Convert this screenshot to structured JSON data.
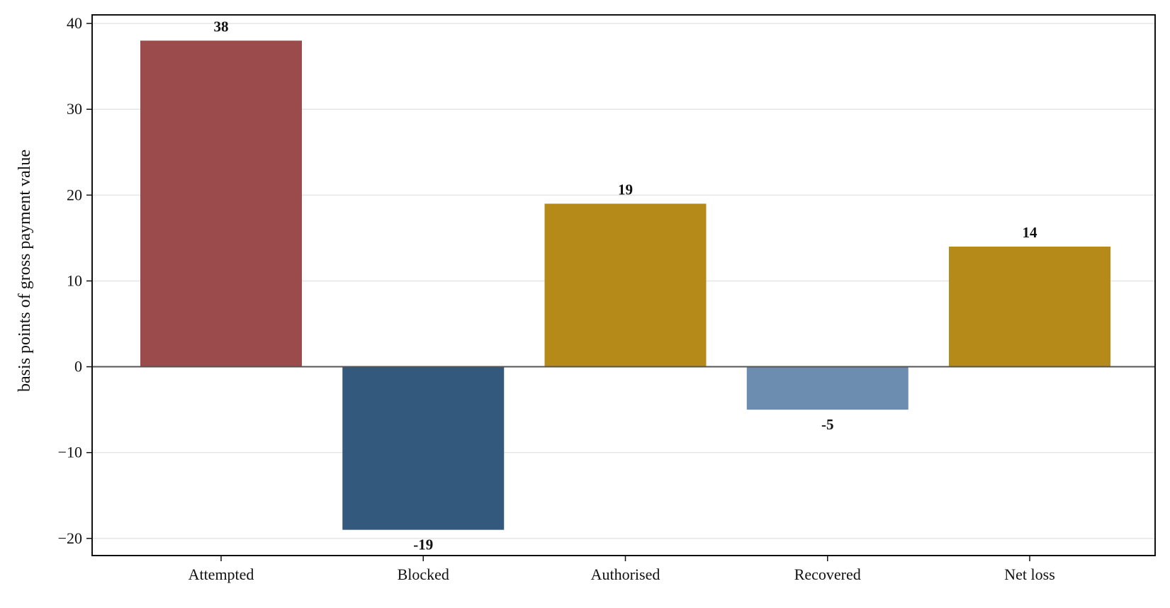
{
  "chart_data": {
    "type": "bar",
    "title": "",
    "xlabel": "",
    "ylabel": "basis points of gross payment value",
    "categories": [
      "Attempted",
      "Blocked",
      "Authorised",
      "Recovered",
      "Net loss"
    ],
    "values": [
      38,
      -19,
      19,
      -5,
      14
    ],
    "data_labels": [
      "38",
      "-19",
      "19",
      "-5",
      "14"
    ],
    "bar_colors": [
      "#9b4b4b",
      "#33597d",
      "#b58a18",
      "#6d8db0",
      "#b58a18"
    ],
    "ylim": [
      -22,
      41
    ],
    "yticks": [
      40,
      30,
      20,
      10,
      0,
      -10,
      -20
    ],
    "ytick_labels": [
      "40",
      "30",
      "20",
      "10",
      "0",
      "−10",
      "−20"
    ],
    "grid": "horizontal",
    "legend": "none",
    "zero_line": true
  }
}
